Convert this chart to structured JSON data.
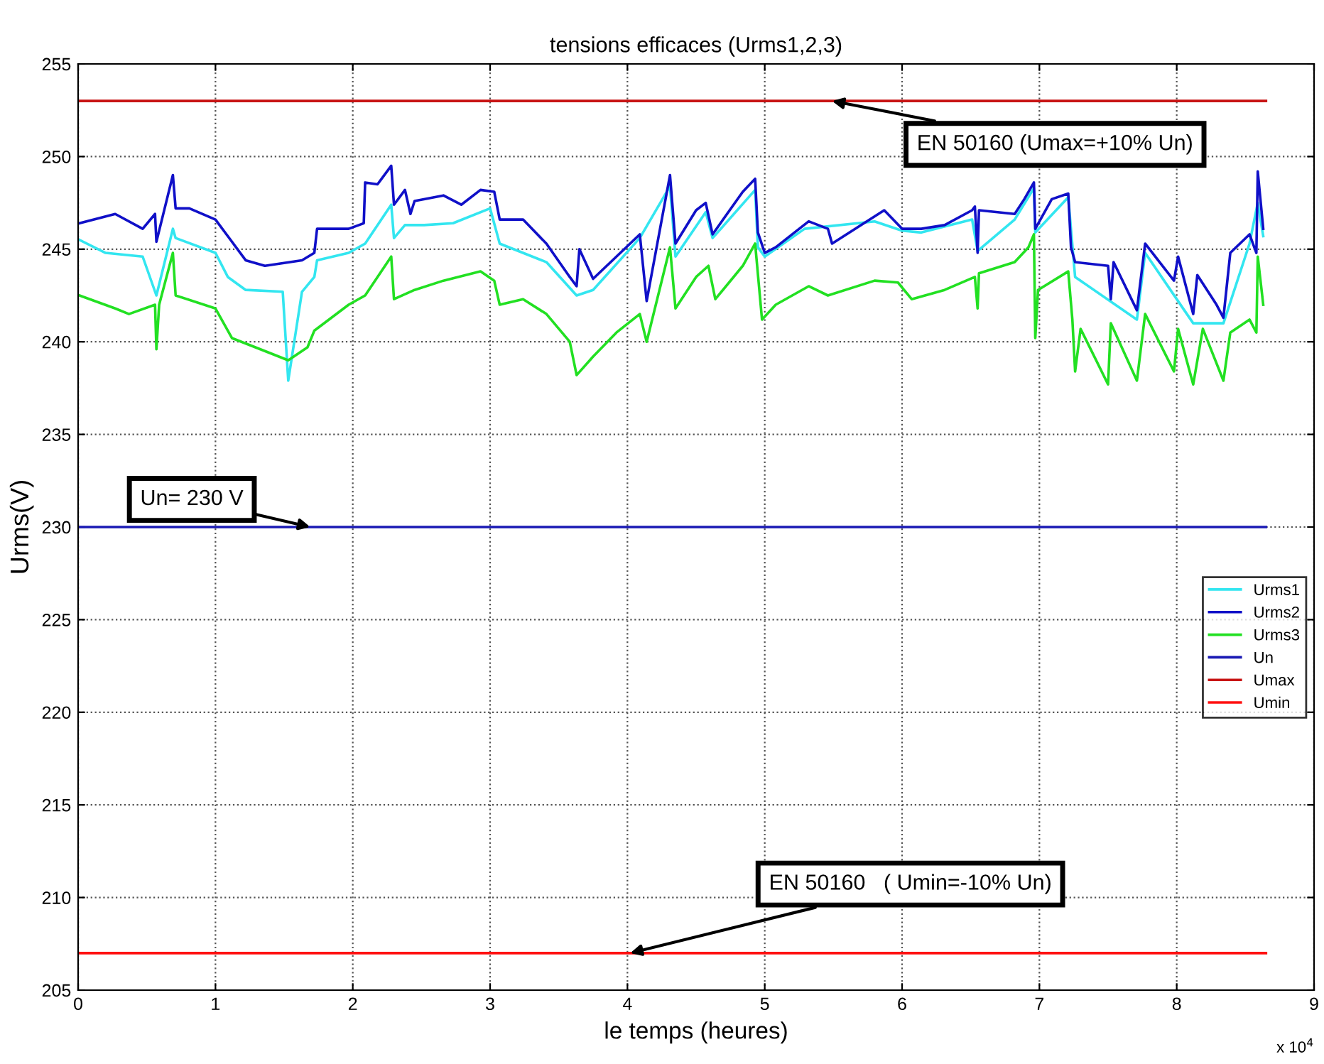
{
  "chart_data": {
    "type": "line",
    "title": "tensions efficaces (Urms1,2,3)",
    "xlabel": "le temps (heures)",
    "ylabel": "Urms(V)",
    "xlim": [
      0,
      9
    ],
    "xticks": [
      0,
      1,
      2,
      3,
      4,
      5,
      6,
      7,
      8,
      9
    ],
    "ylim": [
      205,
      255
    ],
    "yticks": [
      205,
      210,
      215,
      220,
      225,
      230,
      235,
      240,
      245,
      250,
      255
    ],
    "grid": true,
    "legend": "center right",
    "line_style": "solid",
    "marker": "none",
    "series": [
      {
        "name": "Urms1",
        "color": "#33e6f0",
        "x": [
          0.01,
          0.2,
          0.47,
          0.57,
          0.69,
          0.71,
          1.0,
          1.09,
          1.22,
          1.49,
          1.53,
          1.63,
          1.72,
          1.74,
          1.97,
          2.09,
          2.28,
          2.3,
          2.38,
          2.52,
          2.73,
          3.0,
          3.07,
          3.41,
          3.63,
          3.75,
          4.09,
          4.31,
          4.35,
          4.57,
          4.62,
          4.93,
          4.95,
          5.0,
          5.29,
          5.8,
          6.0,
          6.14,
          6.51,
          6.55,
          6.82,
          6.96,
          6.97,
          7.21,
          7.26,
          7.71,
          7.77,
          8.12,
          8.34,
          8.53,
          8.59,
          8.63
        ],
        "values": [
          245.5,
          244.8,
          244.6,
          242.5,
          246.1,
          245.6,
          244.8,
          243.5,
          242.8,
          242.7,
          237.9,
          242.7,
          243.5,
          244.4,
          244.8,
          245.3,
          247.4,
          245.6,
          246.3,
          246.3,
          246.4,
          247.2,
          245.3,
          244.3,
          242.5,
          242.8,
          245.6,
          248.4,
          244.6,
          247.0,
          245.6,
          248.2,
          245.1,
          244.6,
          246.1,
          246.5,
          246.0,
          245.9,
          246.6,
          244.9,
          246.6,
          248.3,
          245.9,
          247.8,
          243.5,
          241.2,
          244.8,
          241.0,
          241.0,
          245.3,
          247.5,
          245.7
        ]
      },
      {
        "name": "Urms2",
        "color": "#1010c8",
        "x": [
          0.01,
          0.27,
          0.47,
          0.56,
          0.57,
          0.69,
          0.71,
          0.81,
          1.0,
          1.09,
          1.22,
          1.36,
          1.63,
          1.72,
          1.74,
          1.97,
          2.08,
          2.09,
          2.18,
          2.28,
          2.3,
          2.38,
          2.42,
          2.45,
          2.66,
          2.79,
          2.93,
          3.03,
          3.07,
          3.24,
          3.41,
          3.58,
          3.63,
          3.65,
          3.75,
          3.92,
          4.09,
          4.14,
          4.31,
          4.35,
          4.5,
          4.57,
          4.62,
          4.84,
          4.93,
          4.95,
          5.0,
          5.08,
          5.32,
          5.46,
          5.49,
          5.87,
          6.0,
          6.14,
          6.31,
          6.51,
          6.53,
          6.55,
          6.56,
          6.82,
          6.89,
          6.96,
          6.97,
          7.09,
          7.21,
          7.23,
          7.26,
          7.5,
          7.52,
          7.54,
          7.71,
          7.77,
          7.98,
          8.01,
          8.12,
          8.15,
          8.29,
          8.34,
          8.39,
          8.53,
          8.58,
          8.59,
          8.63
        ],
        "values": [
          246.4,
          246.9,
          246.1,
          246.9,
          245.4,
          249.0,
          247.2,
          247.2,
          246.6,
          245.7,
          244.4,
          244.1,
          244.4,
          244.8,
          246.1,
          246.1,
          246.4,
          248.6,
          248.5,
          249.5,
          247.4,
          248.2,
          246.9,
          247.6,
          247.9,
          247.4,
          248.2,
          248.1,
          246.6,
          246.6,
          245.3,
          243.5,
          243.0,
          245.0,
          243.4,
          244.6,
          245.8,
          242.2,
          249.0,
          245.3,
          247.1,
          247.5,
          245.8,
          248.1,
          248.8,
          245.9,
          244.8,
          245.1,
          246.5,
          246.1,
          245.3,
          247.1,
          246.1,
          246.1,
          246.3,
          247.1,
          247.3,
          244.8,
          247.1,
          246.9,
          247.7,
          248.6,
          246.1,
          247.7,
          248.0,
          245.1,
          244.3,
          244.1,
          242.3,
          244.3,
          241.7,
          245.3,
          243.3,
          244.6,
          241.5,
          243.6,
          242.0,
          241.3,
          244.8,
          245.8,
          244.8,
          249.2,
          246.1
        ]
      },
      {
        "name": "Urms3",
        "color": "#22e022",
        "x": [
          0.01,
          0.27,
          0.37,
          0.56,
          0.57,
          0.59,
          0.69,
          0.71,
          1.0,
          1.12,
          1.36,
          1.53,
          1.67,
          1.72,
          1.97,
          2.09,
          2.28,
          2.3,
          2.45,
          2.66,
          2.93,
          3.03,
          3.07,
          3.24,
          3.41,
          3.58,
          3.63,
          3.75,
          3.92,
          4.09,
          4.14,
          4.31,
          4.35,
          4.5,
          4.59,
          4.64,
          4.84,
          4.93,
          4.98,
          5.08,
          5.32,
          5.46,
          5.8,
          5.97,
          6.07,
          6.31,
          6.53,
          6.55,
          6.56,
          6.82,
          6.92,
          6.96,
          6.97,
          6.99,
          7.21,
          7.24,
          7.26,
          7.3,
          7.5,
          7.52,
          7.71,
          7.77,
          7.98,
          8.01,
          8.12,
          8.19,
          8.34,
          8.39,
          8.53,
          8.58,
          8.59,
          8.63
        ],
        "values": [
          242.5,
          241.8,
          241.5,
          242.0,
          239.6,
          242.0,
          244.8,
          242.5,
          241.8,
          240.2,
          239.5,
          239.0,
          239.7,
          240.6,
          242.0,
          242.5,
          244.6,
          242.3,
          242.8,
          243.3,
          243.8,
          243.3,
          242.0,
          242.3,
          241.5,
          240.0,
          238.2,
          239.2,
          240.5,
          241.5,
          240.0,
          245.1,
          241.8,
          243.5,
          244.1,
          242.3,
          244.1,
          245.3,
          241.2,
          242.0,
          243.0,
          242.5,
          243.3,
          243.2,
          242.3,
          242.8,
          243.5,
          241.8,
          243.7,
          244.3,
          245.1,
          245.8,
          240.2,
          242.8,
          243.8,
          241.2,
          238.4,
          240.7,
          237.7,
          241.0,
          237.9,
          241.5,
          238.4,
          240.7,
          237.7,
          240.7,
          237.9,
          240.5,
          241.2,
          240.5,
          244.6,
          242.0
        ]
      },
      {
        "name": "Un",
        "color": "#1a1ab4",
        "x": [
          0,
          8.65
        ],
        "values": [
          230,
          230
        ]
      },
      {
        "name": "Umax",
        "color": "#c81414",
        "x": [
          0,
          8.65
        ],
        "values": [
          253,
          253
        ]
      },
      {
        "name": "Umin",
        "color": "#ff1010",
        "x": [
          0,
          8.65
        ],
        "values": [
          207,
          207
        ]
      }
    ],
    "annotations": [
      {
        "text": "EN 50160 (Umax=+10% Un)",
        "x": 5.49,
        "y": 253
      },
      {
        "text": "Un= 230 V",
        "x": 1.69,
        "y": 230
      },
      {
        "text": "EN 50160   ( Umin=-10% Un)",
        "x": 4.02,
        "y": 207
      },
      "x 10$^{4}$"
    ]
  }
}
